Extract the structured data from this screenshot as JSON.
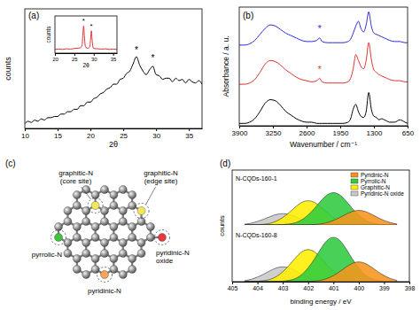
{
  "chart_data": [
    {
      "type": "line",
      "title": "(a)",
      "x_label": "2θ",
      "y_label": "counts",
      "x": [
        10,
        10.5,
        11,
        11.5,
        12,
        12.5,
        13,
        13.5,
        14,
        14.5,
        15,
        15.5,
        16,
        16.5,
        17,
        17.5,
        18,
        18.5,
        19,
        19.5,
        20,
        20.5,
        21,
        21.5,
        22,
        22.5,
        23,
        23.5,
        24,
        24.5,
        25,
        25.5,
        26,
        26.5,
        27,
        27.5,
        28,
        28.5,
        29,
        29.5,
        30,
        30.5,
        31,
        31.5,
        32,
        32.5,
        33,
        33.5,
        34,
        34.5,
        35,
        35.5,
        36,
        36.5,
        37
      ],
      "series": [
        {
          "color": "#000000",
          "values": [
            4,
            6,
            5,
            7,
            6,
            8,
            7,
            9,
            9,
            10,
            10,
            12,
            12,
            14,
            14,
            16,
            16,
            19,
            19,
            22,
            22,
            25,
            26,
            29,
            30,
            33,
            34,
            37,
            37,
            41,
            42,
            46,
            48,
            54,
            60,
            53,
            48,
            45,
            49,
            52,
            45,
            44,
            41,
            42,
            42,
            39,
            42,
            40,
            41,
            38,
            41,
            39,
            38,
            40,
            37
          ]
        }
      ],
      "xlim": [
        10,
        37
      ],
      "xticks": [
        10,
        15,
        20,
        25,
        30,
        35
      ],
      "ylim": [
        0,
        100
      ],
      "tick_labels": "x",
      "annotations": [
        {
          "text": "*",
          "x": 27,
          "y": 63
        },
        {
          "text": "*",
          "x": 29.5,
          "y": 56
        }
      ]
    },
    {
      "type": "line",
      "x_label": "2θ",
      "y_label": "counts",
      "x": [
        20,
        21,
        22,
        23,
        24,
        25,
        26,
        26.5,
        27,
        27.2,
        27.4,
        27.6,
        27.8,
        28,
        28.5,
        29,
        29.2,
        29.4,
        29.6,
        29.8,
        30,
        31,
        32,
        33,
        34,
        35,
        36
      ],
      "series": [
        {
          "color": "#e03030",
          "values": [
            12,
            13,
            12,
            14,
            13,
            15,
            16,
            17,
            25,
            60,
            88,
            55,
            25,
            18,
            16,
            20,
            45,
            72,
            42,
            20,
            15,
            14,
            13,
            14,
            12,
            13,
            12
          ]
        }
      ],
      "xlim": [
        20,
        36
      ],
      "xticks": [
        20,
        25,
        30,
        35
      ],
      "ylim": [
        0,
        120
      ],
      "tick_labels": "x",
      "annotations": [
        {
          "text": "*",
          "x": 27.4,
          "y": 96
        },
        {
          "text": "*",
          "x": 29.4,
          "y": 80
        }
      ]
    },
    {
      "type": "line",
      "title": "(b)",
      "x_label": "Wavenumber / cm⁻¹",
      "y_label": "Absorbance / a. u.",
      "x": [
        3900,
        3800,
        3700,
        3600,
        3500,
        3400,
        3300,
        3200,
        3100,
        3000,
        2900,
        2800,
        2700,
        2600,
        2500,
        2400,
        2350,
        2300,
        2200,
        2100,
        2000,
        1900,
        1800,
        1750,
        1700,
        1650,
        1600,
        1550,
        1500,
        1450,
        1400,
        1350,
        1300,
        1250,
        1200,
        1150,
        1100,
        1050,
        1000,
        900,
        800,
        700,
        650
      ],
      "series": [
        {
          "color": "#2b2bd9",
          "values": [
            68,
            68,
            69,
            72,
            77,
            82,
            85,
            84,
            81,
            78,
            76,
            74,
            72,
            71,
            71,
            72,
            74,
            71,
            70,
            70,
            70,
            70,
            71,
            73,
            78,
            84,
            88,
            82,
            79,
            85,
            96,
            84,
            78,
            77,
            76,
            75,
            74,
            73,
            72,
            71,
            71,
            70,
            70
          ]
        },
        {
          "color": "#e03030",
          "values": [
            35,
            35,
            36,
            39,
            45,
            52,
            55,
            54,
            51,
            47,
            44,
            41,
            39,
            38,
            37,
            38,
            40,
            37,
            36,
            36,
            36,
            36,
            37,
            40,
            48,
            60,
            55,
            50,
            48,
            55,
            70,
            56,
            47,
            45,
            43,
            42,
            41,
            40,
            39,
            38,
            38,
            37,
            37
          ]
        },
        {
          "color": "#000000",
          "values": [
            2,
            2,
            3,
            6,
            12,
            19,
            22,
            21,
            17,
            12,
            9,
            6,
            4,
            3,
            3,
            2,
            2,
            2,
            2,
            2,
            2,
            2,
            3,
            6,
            14,
            18,
            12,
            8,
            7,
            12,
            28,
            14,
            8,
            7,
            5,
            6,
            5,
            4,
            3,
            3,
            5,
            3,
            2
          ]
        }
      ],
      "xlim": [
        3900,
        650
      ],
      "xticks": [
        3900,
        3250,
        2600,
        1950,
        1300,
        650
      ],
      "ylim": [
        0,
        100
      ],
      "tick_labels": "x",
      "annotations": [
        {
          "text": "*",
          "x": 2350,
          "y": 79,
          "color": "#2b2bd9"
        },
        {
          "text": "*",
          "x": 2350,
          "y": 45,
          "color": "#e03030"
        }
      ]
    },
    {
      "type": "area",
      "title": "(d)",
      "subtitle": "N-CQDs-160-1",
      "x": [
        404.5,
        404.25,
        404,
        403.75,
        403.5,
        403.25,
        403,
        402.75,
        402.5,
        402.25,
        402,
        401.75,
        401.5,
        401.25,
        401,
        400.75,
        400.5,
        400.25,
        400,
        399.75,
        399.5,
        399.25,
        399,
        398.75,
        398.5
      ],
      "series": [
        {
          "name": "Pyridinic-N",
          "color": "#f7941d",
          "values": [
            0,
            0,
            0,
            0,
            0,
            0,
            0,
            0,
            0,
            0,
            0.5,
            1.4,
            3.2,
            7.2,
            14,
            23,
            33.3,
            41.9,
            45,
            41.9,
            33.3,
            23,
            14,
            7.2,
            3.2
          ]
        },
        {
          "name": "Pyrrolic-N",
          "color": "#2ecc40",
          "values": [
            0,
            0,
            0,
            0,
            0,
            0,
            1,
            3,
            7,
            16,
            31,
            51,
            74,
            93,
            100,
            93,
            74,
            51,
            31,
            16,
            7,
            3,
            1,
            0,
            0
          ]
        },
        {
          "name": "Graphitic-N",
          "color": "#ffee00",
          "values": [
            0,
            0,
            0.8,
            2.3,
            5.3,
            12,
            23.3,
            38.3,
            55.5,
            69.8,
            75,
            69.8,
            55.5,
            38.3,
            23.3,
            12,
            5.3,
            2.3,
            0.8,
            0,
            0,
            0,
            0,
            0,
            0
          ]
        },
        {
          "name": "Pyridinic-N oxide",
          "color": "#c8c8c8",
          "values": [
            2.5,
            5.6,
            10.9,
            17.9,
            25.9,
            32.6,
            35,
            32.6,
            25.9,
            17.9,
            10.9,
            5.6,
            2.5,
            1.1,
            0.4,
            0,
            0,
            0,
            0,
            0,
            0,
            0,
            0,
            0,
            0
          ]
        }
      ],
      "xlim": [
        405,
        398
      ],
      "ylim": [
        0,
        170
      ],
      "tick_labels": false,
      "legend": "upper right"
    },
    {
      "type": "area",
      "subtitle": "N-CQDs-160-8",
      "x_label": "binding energy / eV",
      "y_label": "counts",
      "x": [
        404.5,
        404.25,
        404,
        403.75,
        403.5,
        403.25,
        403,
        402.75,
        402.5,
        402.25,
        402,
        401.75,
        401.5,
        401.25,
        401,
        400.75,
        400.5,
        400.25,
        400,
        399.75,
        399.5,
        399.25,
        399,
        398.75,
        398.5
      ],
      "series": [
        {
          "color": "#f7941d",
          "values": [
            0,
            0,
            0,
            0,
            0,
            0,
            0,
            0,
            0,
            0,
            0.4,
            1.2,
            2.8,
            6.4,
            12.4,
            20.4,
            29.6,
            37.2,
            40,
            37.2,
            29.6,
            20.4,
            12.4,
            6.4,
            2.8
          ]
        },
        {
          "color": "#2ecc40",
          "values": [
            0,
            0,
            0,
            0,
            0,
            0,
            0.9,
            2.7,
            6.3,
            14.4,
            27.9,
            45.9,
            66.6,
            83.7,
            90,
            83.7,
            66.6,
            45.9,
            27.9,
            14.4,
            6.3,
            2.7,
            0.9,
            0,
            0
          ]
        },
        {
          "color": "#ffee00",
          "values": [
            0,
            0,
            0.7,
            2,
            4.6,
            10.4,
            20.2,
            33.2,
            48.1,
            60.5,
            65,
            60.5,
            48.1,
            33.2,
            20.2,
            10.4,
            4.6,
            2,
            0.7,
            0,
            0,
            0,
            0,
            0,
            0
          ]
        },
        {
          "color": "#c8c8c8",
          "values": [
            2.1,
            4.8,
            9.3,
            15.3,
            22.2,
            27.9,
            30,
            27.9,
            22.2,
            15.3,
            9.3,
            4.8,
            2.1,
            0.9,
            0.3,
            0,
            0,
            0,
            0,
            0,
            0,
            0,
            0,
            0,
            0
          ]
        }
      ],
      "xlim": [
        405,
        398
      ],
      "xticks": [
        405,
        404,
        403,
        402,
        401,
        400,
        399,
        398
      ],
      "ylim": [
        0,
        115
      ],
      "tick_labels": "x"
    }
  ],
  "diagram": {
    "title": "(c)",
    "nodes": [
      {
        "label": [
          "graphitic-N",
          "(core site)"
        ],
        "color": "#f2e85a"
      },
      {
        "label": [
          "graphitic-N",
          "(edge site)"
        ],
        "color": "#f2e85a"
      },
      {
        "label": [
          "pyrrolic-N"
        ],
        "color": "#3cc43c"
      },
      {
        "label": [
          "pyridinic-N",
          "oxide"
        ],
        "color": "#e8383d"
      },
      {
        "label": [
          "pyridinic-N"
        ],
        "color": "#f5a45a"
      }
    ]
  }
}
